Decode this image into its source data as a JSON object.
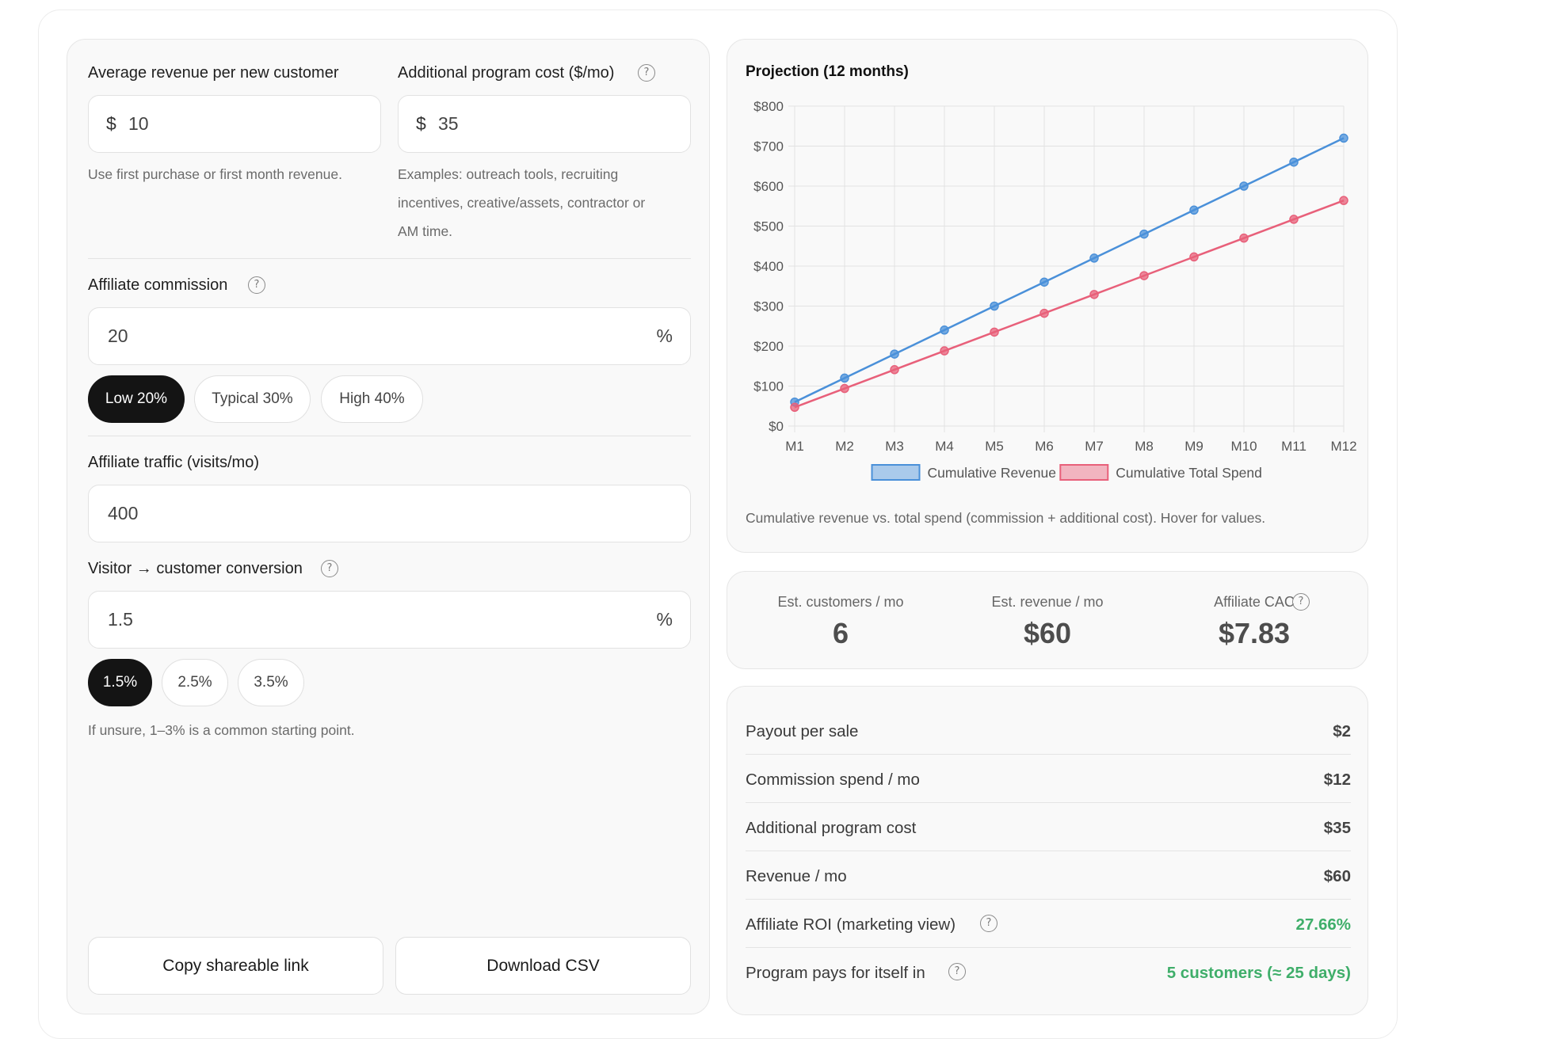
{
  "inputs": {
    "avg_revenue": {
      "label": "Average revenue per new customer",
      "prefix": "$",
      "value": "10",
      "hint": "Use first purchase or first month revenue."
    },
    "program_cost": {
      "label": "Additional program cost ($/mo)",
      "prefix": "$",
      "value": "35",
      "hint_lines": [
        "Examples: outreach tools, recruiting",
        "incentives, creative/assets, contractor or",
        "AM time."
      ]
    },
    "commission": {
      "label": "Affiliate commission",
      "value": "20",
      "suffix": "%",
      "presets": [
        {
          "label": "Low 20%",
          "active": true
        },
        {
          "label": "Typical 30%",
          "active": false
        },
        {
          "label": "High 40%",
          "active": false
        }
      ]
    },
    "traffic": {
      "label": "Affiliate traffic (visits/mo)",
      "value": "400"
    },
    "conversion": {
      "label": "Visitor → customer conversion",
      "value": "1.5",
      "suffix": "%",
      "presets": [
        {
          "label": "1.5%",
          "active": true
        },
        {
          "label": "2.5%",
          "active": false
        },
        {
          "label": "3.5%",
          "active": false
        }
      ],
      "hint": "If unsure, 1–3% is a common starting point."
    }
  },
  "help_glyph": "?",
  "actions": {
    "copy_link": "Copy shareable link",
    "download_csv": "Download CSV"
  },
  "chart_card": {
    "title": "Projection (12 months)",
    "caption": "Cumulative revenue vs. total spend (commission + additional cost). Hover for values."
  },
  "chart_data": {
    "type": "line",
    "categories": [
      "M1",
      "M2",
      "M3",
      "M4",
      "M5",
      "M6",
      "M7",
      "M8",
      "M9",
      "M10",
      "M11",
      "M12"
    ],
    "series": [
      {
        "name": "Cumulative Revenue",
        "color": "#4a90d9",
        "values": [
          60,
          120,
          180,
          240,
          300,
          360,
          420,
          480,
          540,
          600,
          660,
          720
        ]
      },
      {
        "name": "Cumulative Total Spend",
        "color": "#e8607a",
        "values": [
          47,
          94,
          141,
          188,
          235,
          282,
          329,
          376,
          423,
          470,
          517,
          564
        ]
      }
    ],
    "y_ticks": [
      "$0",
      "$100",
      "$200",
      "$300",
      "$400",
      "$500",
      "$600",
      "$700",
      "$800"
    ],
    "ylim": [
      0,
      800
    ],
    "grid": true,
    "legend": "bottom"
  },
  "stats": [
    {
      "label": "Est. customers / mo",
      "value": "6",
      "help": false
    },
    {
      "label": "Est. revenue / mo",
      "value": "$60",
      "help": false
    },
    {
      "label": "Affiliate CAC",
      "value": "$7.83",
      "help": true
    }
  ],
  "metrics": [
    {
      "label": "Payout per sale",
      "value": "$2",
      "green": false,
      "help": false
    },
    {
      "label": "Commission spend / mo",
      "value": "$12",
      "green": false,
      "help": false
    },
    {
      "label": "Additional program cost",
      "value": "$35",
      "green": false,
      "help": false
    },
    {
      "label": "Revenue / mo",
      "value": "$60",
      "green": false,
      "help": false
    },
    {
      "label": "Affiliate ROI (marketing view)",
      "value": "27.66%",
      "green": true,
      "help": true
    },
    {
      "label": "Program pays for itself in",
      "value": "5 customers (≈ 25 days)",
      "green": true,
      "help": true
    }
  ],
  "colors": {
    "revenue": "#4a90d9",
    "spend": "#e8607a",
    "positive": "#3fae6a",
    "active_pill": "#141414"
  }
}
